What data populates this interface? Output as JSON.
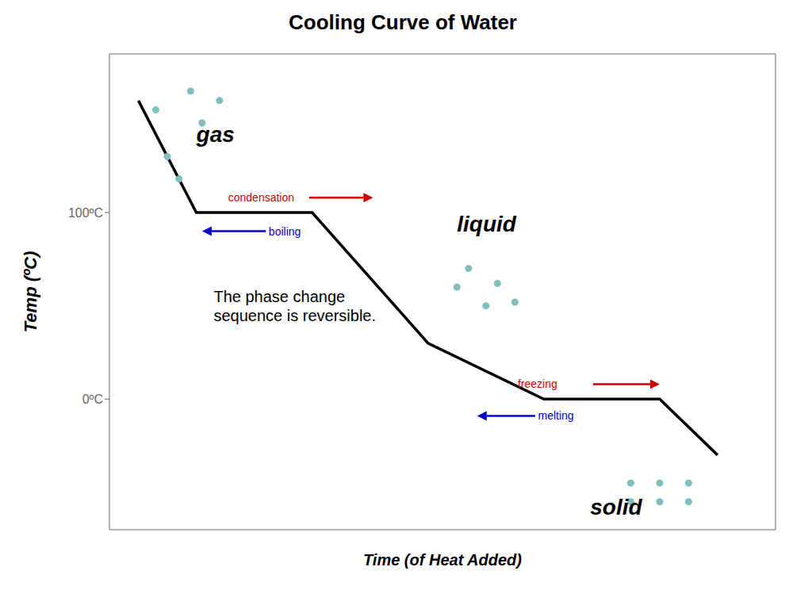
{
  "chart_data": {
    "type": "line",
    "title": "Cooling Curve of Water",
    "x_label": "Time (of Heat Added)",
    "y_label": "Temp (ºC)",
    "xlim": [
      -0.5,
      11
    ],
    "ylim": [
      -70,
      185
    ],
    "xticks": [],
    "yticks": [
      {
        "value": 0,
        "label": "0ºC"
      },
      {
        "value": 100,
        "label": "100ºC"
      }
    ],
    "tick_labels": "y",
    "grid": false,
    "series": [
      {
        "type": "line",
        "color": "#000000",
        "x": [
          0,
          1,
          3,
          5,
          7,
          9,
          10
        ],
        "values": [
          160,
          100,
          100,
          30,
          0,
          0,
          -30
        ]
      },
      {
        "type": "scatter",
        "color": "#7fbfbf",
        "x": [
          0.3,
          0.9,
          0.5,
          1.1,
          0.7,
          1.4
        ],
        "values": [
          155,
          165,
          130,
          148,
          118,
          160
        ]
      },
      {
        "type": "scatter",
        "color": "#7fbfbf",
        "x": [
          5.7,
          6.2,
          5.5,
          6.0,
          6.5
        ],
        "values": [
          70,
          62,
          60,
          50,
          52
        ]
      },
      {
        "type": "scatter",
        "color": "#7fbfbf",
        "x": [
          8.5,
          9.0,
          9.5,
          8.5,
          9.0,
          9.5
        ],
        "values": [
          -45,
          -45,
          -45,
          -55,
          -55,
          -55
        ]
      }
    ],
    "annotations": [
      {
        "text": "gas",
        "x": 1.0,
        "y": 138
      },
      {
        "text": "liquid",
        "x": 5.5,
        "y": 90
      },
      {
        "text": "solid",
        "x": 7.8,
        "y": -62
      },
      {
        "text": "condensation",
        "x": 1.55,
        "y": 108,
        "color": "#cc0000",
        "arrow_from": [
          2.95,
          108
        ],
        "arrow_to": [
          4.05,
          108
        ]
      },
      {
        "text": "boiling",
        "x": 2.25,
        "y": 90,
        "color": "#0000cc",
        "arrow_from": [
          2.2,
          90
        ],
        "arrow_to": [
          1.1,
          90
        ]
      },
      {
        "text": "freezing",
        "x": 6.55,
        "y": 8,
        "color": "#cc0000",
        "arrow_from": [
          7.85,
          8
        ],
        "arrow_to": [
          9.0,
          8
        ]
      },
      {
        "text": "melting",
        "x": 6.9,
        "y": -9,
        "color": "#0000cc",
        "arrow_from": [
          6.85,
          -9
        ],
        "arrow_to": [
          5.85,
          -9
        ]
      },
      {
        "text": "The phase change\nsequence is reversible.",
        "x": 1.3,
        "y": 50
      }
    ]
  }
}
